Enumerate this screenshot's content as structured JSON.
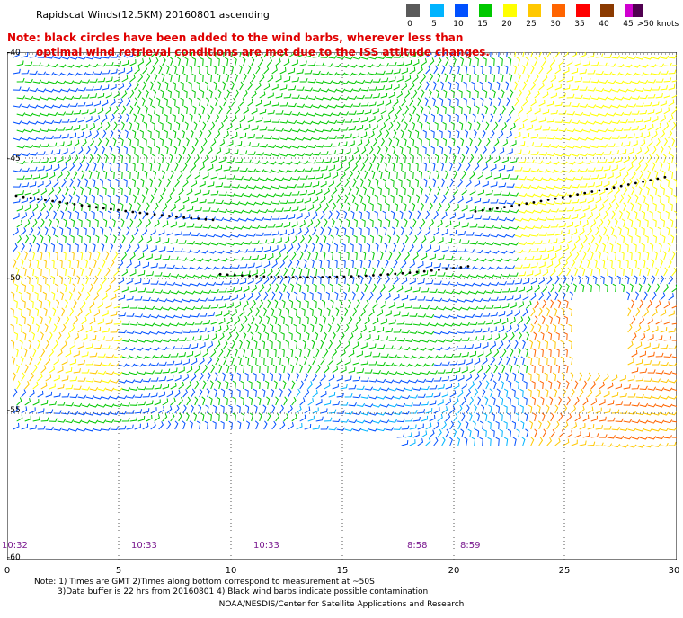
{
  "header": {
    "title": "Rapidscat Winds(12.5KM) 20160801 ascending",
    "note_line1": "Note: black circles have been added to the wind barbs, wherever less than",
    "note_line2": "optimal wind retrieval conditions are met due to the ISS attitude changes."
  },
  "legend": {
    "unit": "knots",
    "items": [
      {
        "label": "0",
        "color": "#5a5a5a"
      },
      {
        "label": "5",
        "color": "#00b4ff"
      },
      {
        "label": "10",
        "color": "#0050ff"
      },
      {
        "label": "15",
        "color": "#00c800"
      },
      {
        "label": "20",
        "color": "#ffff00"
      },
      {
        "label": "25",
        "color": "#ffc800"
      },
      {
        "label": "30",
        "color": "#ff6400"
      },
      {
        "label": "35",
        "color": "#ff0000"
      },
      {
        "label": "40",
        "color": "#8b3a00"
      },
      {
        "label": "45",
        "color": "#d000d0"
      },
      {
        "label": ">50 knots",
        "color": "#500050"
      }
    ]
  },
  "map": {
    "lat_labels": [
      "-40",
      "-45",
      "-50",
      "-55",
      "-60"
    ],
    "lon_labels": [
      "0",
      "5",
      "10",
      "15",
      "20",
      "25",
      "30"
    ],
    "time_labels": [
      "10:32",
      "10:33",
      "10:33",
      "8:58",
      "8:59"
    ]
  },
  "footer": {
    "note1": "Note: 1) Times are GMT 2)Times along bottom correspond to measurement at ~50S",
    "note2": "3)Data buffer is 22 hrs from 20160801 4) Black wind barbs indicate possible contamination",
    "credit": "NOAA/NESDIS/Center for Satellite Applications and Research"
  }
}
